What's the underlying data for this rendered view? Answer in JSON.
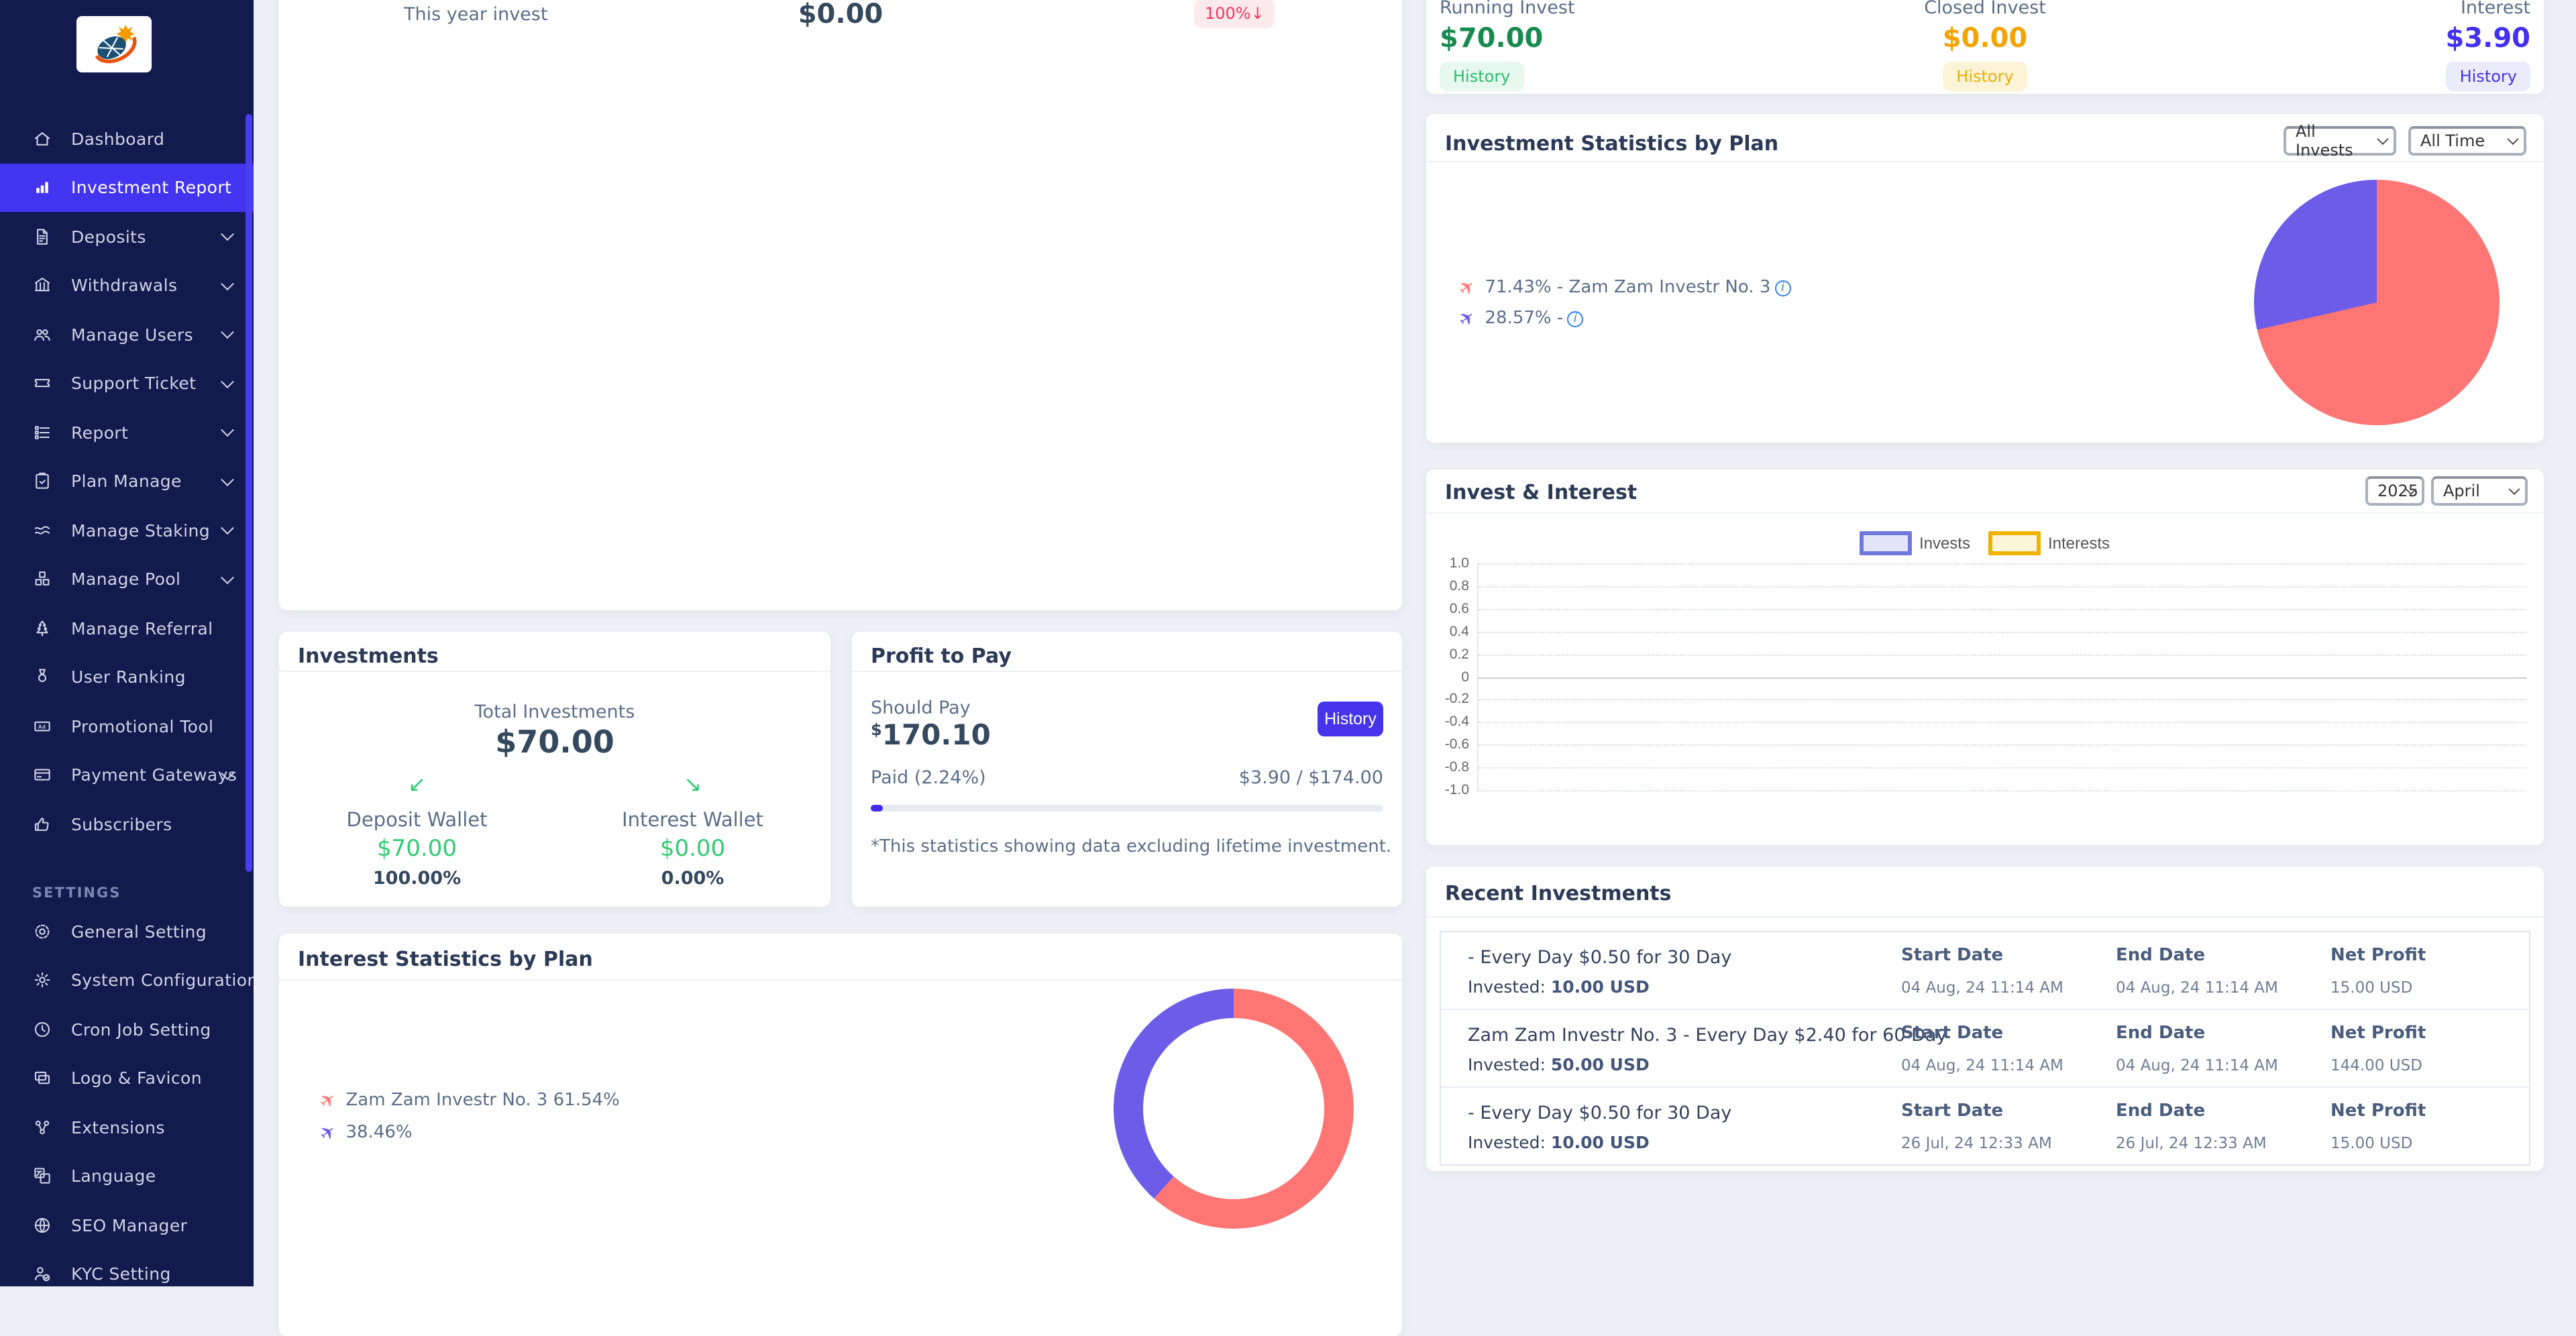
{
  "colors": {
    "sidebar_bg": "#121a4e",
    "sidebar_active": "#4334f0",
    "accent": "#4634eb",
    "chart_red": "#ff7675",
    "chart_purple": "#6c5ce7",
    "green_value": "#2ecc71",
    "green_dark": "#188a4f",
    "orange": "#f5a300",
    "indigo_value": "#4330f0",
    "badge_red": "#f5365c",
    "legend_invest_border": "#6f79dd",
    "legend_interest_border": "#f0b400"
  },
  "sidebar": {
    "settings_label": "SETTINGS",
    "items": [
      {
        "label": "Dashboard"
      },
      {
        "label": "Investment Report"
      },
      {
        "label": "Deposits"
      },
      {
        "label": "Withdrawals"
      },
      {
        "label": "Manage Users"
      },
      {
        "label": "Support Ticket"
      },
      {
        "label": "Report"
      },
      {
        "label": "Plan Manage"
      },
      {
        "label": "Manage Staking"
      },
      {
        "label": "Manage Pool"
      },
      {
        "label": "Manage Referral"
      },
      {
        "label": "User Ranking"
      },
      {
        "label": "Promotional Tool"
      },
      {
        "label": "Payment Gateways"
      },
      {
        "label": "Subscribers"
      }
    ],
    "settings_items": [
      {
        "label": "General Setting"
      },
      {
        "label": "System Configuration"
      },
      {
        "label": "Cron Job Setting"
      },
      {
        "label": "Logo & Favicon"
      },
      {
        "label": "Extensions"
      },
      {
        "label": "Language"
      },
      {
        "label": "SEO Manager"
      },
      {
        "label": "KYC Setting"
      }
    ]
  },
  "year_card": {
    "label": "This year invest",
    "value": "$0.00",
    "badge": "100%↓"
  },
  "top_stats": {
    "running": {
      "label": "Running Invest",
      "value": "$70.00",
      "history": "History"
    },
    "closed": {
      "label": "Closed Invest",
      "value": "$0.00",
      "history": "History"
    },
    "interest": {
      "label": "Interest",
      "value": "$3.90",
      "history": "History"
    }
  },
  "investment_stats": {
    "title": "Investment Statistics by Plan",
    "filter_invests": "All Invests",
    "filter_time": "All Time",
    "legend": [
      {
        "text": "71.43% - Zam Zam Investr No. 3"
      },
      {
        "text": "28.57% -"
      }
    ]
  },
  "invest_interest": {
    "title": "Invest & Interest",
    "year": "2025",
    "month": "April",
    "legend_invests": "Invests",
    "legend_interests": "Interests",
    "yticks": [
      "1.0",
      "0.8",
      "0.6",
      "0.4",
      "0.2",
      "0",
      "-0.2",
      "-0.4",
      "-0.6",
      "-0.8",
      "-1.0"
    ]
  },
  "investments": {
    "title": "Investments",
    "total_label": "Total Investments",
    "total_value": "$70.00",
    "wallets": [
      {
        "arrow": "↙",
        "name": "Deposit Wallet",
        "value": "$70.00",
        "pct": "100.00%"
      },
      {
        "arrow": "↘",
        "name": "Interest Wallet",
        "value": "$0.00",
        "pct": "0.00%"
      }
    ]
  },
  "profit": {
    "title": "Profit to Pay",
    "should_pay_label": "Should Pay",
    "currency": "$",
    "amount": "170.10",
    "history": "History",
    "paid_label": "Paid (2.24%)",
    "paid_ratio": "$3.90 / $174.00",
    "progress_pct": 2.24,
    "note": "*This statistics showing data excluding lifetime investment."
  },
  "interest_stats": {
    "title": "Interest Statistics by Plan",
    "legend": [
      {
        "text": "Zam Zam Investr No. 3 61.54%"
      },
      {
        "text": "38.46%"
      }
    ]
  },
  "recent": {
    "title": "Recent Investments",
    "rows": [
      {
        "name": "- Every Day $0.50 for 30 Day",
        "invested_label": "Invested:",
        "invested": "10.00 USD",
        "start_label": "Start Date",
        "start": "04 Aug, 24 11:14 AM",
        "end_label": "End Date",
        "end": "04 Aug, 24 11:14 AM",
        "profit_label": "Net Profit",
        "profit": "15.00 USD"
      },
      {
        "name": "Zam Zam Investr No. 3 - Every Day $2.40 for 60 Day",
        "invested_label": "Invested:",
        "invested": "50.00 USD",
        "start_label": "Start Date",
        "start": "04 Aug, 24 11:14 AM",
        "end_label": "End Date",
        "end": "04 Aug, 24 11:14 AM",
        "profit_label": "Net Profit",
        "profit": "144.00 USD"
      },
      {
        "name": "- Every Day $0.50 for 30 Day",
        "invested_label": "Invested:",
        "invested": "10.00 USD",
        "start_label": "Start Date",
        "start": "26 Jul, 24 12:33 AM",
        "end_label": "End Date",
        "end": "26 Jul, 24 12:33 AM",
        "profit_label": "Net Profit",
        "profit": "15.00 USD"
      }
    ]
  },
  "chart_data": [
    {
      "id": "investment-statistics-by-plan",
      "type": "pie",
      "slices": [
        {
          "label": "Zam Zam Investr No. 3",
          "value": 71.43,
          "color": "#ff7675"
        },
        {
          "label": "",
          "value": 28.57,
          "color": "#6c5ce7"
        }
      ],
      "legend_position": "left"
    },
    {
      "id": "invest-and-interest",
      "type": "line",
      "title": "Invest & Interest",
      "series": [
        {
          "name": "Invests",
          "color": "#6f79dd",
          "values": []
        },
        {
          "name": "Interests",
          "color": "#f0b400",
          "values": []
        }
      ],
      "ylim": [
        -1.0,
        1.0
      ],
      "yticks": [
        1.0,
        0.8,
        0.6,
        0.4,
        0.2,
        0,
        -0.2,
        -0.4,
        -0.6,
        -0.8,
        -1.0
      ],
      "grid": true,
      "legend_position": "top",
      "note_no_data": true
    },
    {
      "id": "interest-statistics-by-plan",
      "type": "donut",
      "slices": [
        {
          "label": "Zam Zam Investr No. 3",
          "value": 61.54,
          "color": "#ff7675"
        },
        {
          "label": "",
          "value": 38.46,
          "color": "#6c5ce7"
        }
      ],
      "legend_position": "left"
    }
  ]
}
